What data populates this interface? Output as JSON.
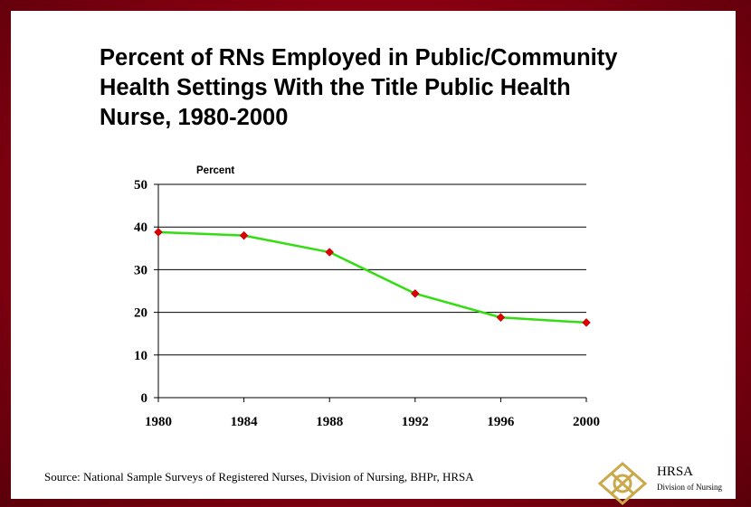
{
  "slide": {
    "title_lines": [
      "Percent of RNs Employed in Public/Community",
      "Health Settings With the Title Public Health",
      "Nurse, 1980-2000"
    ],
    "source": "Source: National Sample Surveys of Registered Nurses, Division of Nursing, BHPr, HRSA",
    "logo": {
      "name": "HRSA",
      "division": "Division of Nursing"
    }
  },
  "colors": {
    "background": "#8a0012",
    "line": "#33dd11",
    "marker": "#dd0000",
    "gridline": "#000000"
  },
  "chart_data": {
    "type": "line",
    "title": "Percent of RNs Employed in Public/Community Health Settings With the Title Public Health Nurse, 1980-2000",
    "xlabel": "",
    "ylabel": "Percent",
    "x": [
      1980,
      1984,
      1988,
      1992,
      1996,
      2000
    ],
    "series": [
      {
        "values": [
          38.8,
          38.0,
          34.1,
          24.4,
          18.8,
          17.6
        ]
      }
    ],
    "ylim": [
      0,
      50
    ],
    "yticks": [
      0,
      10,
      20,
      30,
      40,
      50
    ],
    "xticks": [
      1980,
      1984,
      1988,
      1992,
      1996,
      2000
    ],
    "grid": "horizontal",
    "legend": "none"
  }
}
